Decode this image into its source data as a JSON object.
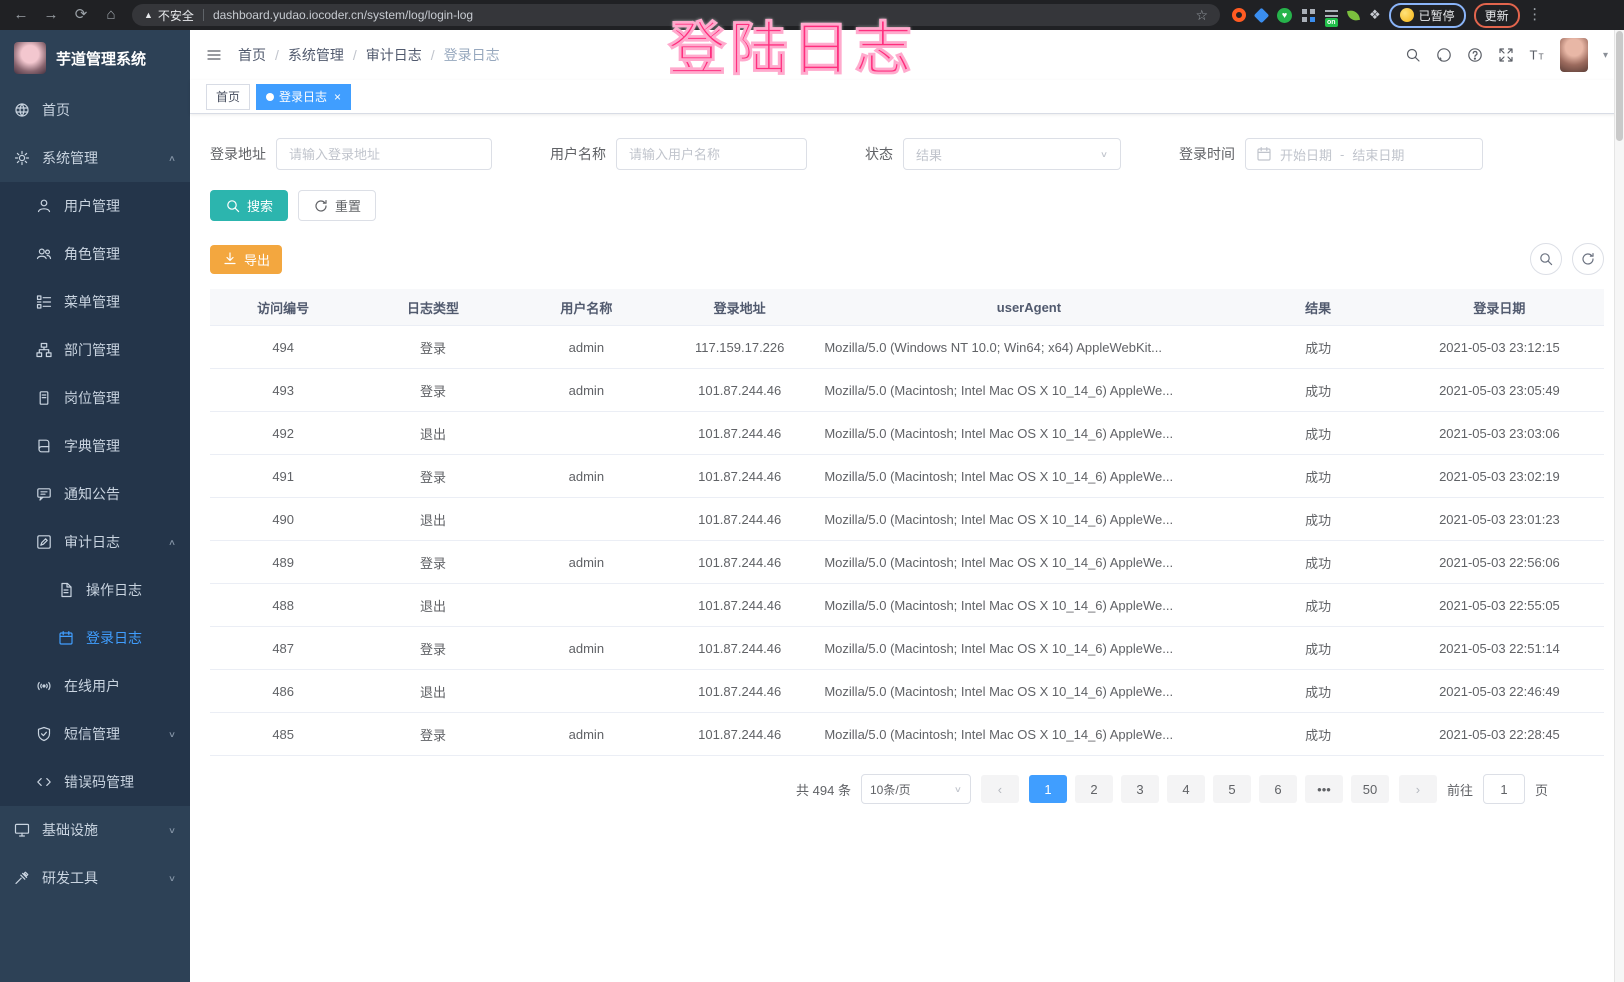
{
  "browser": {
    "security_label": "不安全",
    "url": "dashboard.yudao.iocoder.cn/system/log/login-log",
    "extension_badge": "on",
    "profile_chip": "已暂停",
    "update_button": "更新"
  },
  "annotation": {
    "text": "登陆日志",
    "color": "#ff2f7e"
  },
  "sidebar": {
    "app_title": "芋道管理系统",
    "menu": [
      {
        "name": "home",
        "icon": "dashboard-icon",
        "label": "首页",
        "depth": 0
      },
      {
        "name": "system",
        "icon": "gear-icon",
        "label": "系统管理",
        "depth": 0,
        "chevron": "up"
      },
      {
        "name": "user-mgmt",
        "icon": "user-icon",
        "label": "用户管理",
        "depth": 1
      },
      {
        "name": "role-mgmt",
        "icon": "users-icon",
        "label": "角色管理",
        "depth": 1
      },
      {
        "name": "menu-mgmt",
        "icon": "menu-tree-icon",
        "label": "菜单管理",
        "depth": 1
      },
      {
        "name": "dept-mgmt",
        "icon": "org-tree-icon",
        "label": "部门管理",
        "depth": 1
      },
      {
        "name": "post-mgmt",
        "icon": "badge-icon",
        "label": "岗位管理",
        "depth": 1
      },
      {
        "name": "dict-mgmt",
        "icon": "book-icon",
        "label": "字典管理",
        "depth": 1
      },
      {
        "name": "notice",
        "icon": "megaphone-icon",
        "label": "通知公告",
        "depth": 1
      },
      {
        "name": "audit-log",
        "icon": "edit-icon",
        "label": "审计日志",
        "depth": 1,
        "chevron": "up"
      },
      {
        "name": "operate-log",
        "icon": "document-icon",
        "label": "操作日志",
        "depth": 2
      },
      {
        "name": "login-log",
        "icon": "calendar-icon",
        "label": "登录日志",
        "depth": 2,
        "active": true
      },
      {
        "name": "online-user",
        "icon": "online-icon",
        "label": "在线用户",
        "depth": 1
      },
      {
        "name": "sms-mgmt",
        "icon": "shield-icon",
        "label": "短信管理",
        "depth": 1,
        "chevron": "down"
      },
      {
        "name": "errcode-mgmt",
        "icon": "code-icon",
        "label": "错误码管理",
        "depth": 1
      },
      {
        "name": "infra",
        "icon": "monitor-icon",
        "label": "基础设施",
        "depth": 0,
        "chevron": "down"
      },
      {
        "name": "devtool",
        "icon": "tool-icon",
        "label": "研发工具",
        "depth": 0,
        "chevron": "down"
      }
    ]
  },
  "header": {
    "breadcrumb": [
      "首页",
      "系统管理",
      "审计日志",
      "登录日志"
    ],
    "icons": [
      "search-icon",
      "github-icon",
      "help-icon",
      "fullscreen-icon",
      "font-size-icon"
    ]
  },
  "tabs": [
    {
      "label": "首页",
      "active": false
    },
    {
      "label": "登录日志",
      "active": true
    }
  ],
  "filters": {
    "address_label": "登录地址",
    "address_placeholder": "请输入登录地址",
    "username_label": "用户名称",
    "username_placeholder": "请输入用户名称",
    "status_label": "状态",
    "status_placeholder": "结果",
    "time_label": "登录时间",
    "start_placeholder": "开始日期",
    "separator": "-",
    "end_placeholder": "结束日期",
    "search_label": "搜索",
    "reset_label": "重置",
    "export_label": "导出"
  },
  "table": {
    "columns": [
      "访问编号",
      "日志类型",
      "用户名称",
      "登录地址",
      "userAgent",
      "结果",
      "登录日期"
    ],
    "rows": [
      {
        "id": "494",
        "type": "登录",
        "user": "admin",
        "ip": "117.159.17.226",
        "ua": "Mozilla/5.0 (Windows NT 10.0; Win64; x64) AppleWebKit...",
        "result": "成功",
        "date": "2021-05-03 23:12:15"
      },
      {
        "id": "493",
        "type": "登录",
        "user": "admin",
        "ip": "101.87.244.46",
        "ua": "Mozilla/5.0 (Macintosh; Intel Mac OS X 10_14_6) AppleWe...",
        "result": "成功",
        "date": "2021-05-03 23:05:49"
      },
      {
        "id": "492",
        "type": "退出",
        "user": "",
        "ip": "101.87.244.46",
        "ua": "Mozilla/5.0 (Macintosh; Intel Mac OS X 10_14_6) AppleWe...",
        "result": "成功",
        "date": "2021-05-03 23:03:06"
      },
      {
        "id": "491",
        "type": "登录",
        "user": "admin",
        "ip": "101.87.244.46",
        "ua": "Mozilla/5.0 (Macintosh; Intel Mac OS X 10_14_6) AppleWe...",
        "result": "成功",
        "date": "2021-05-03 23:02:19"
      },
      {
        "id": "490",
        "type": "退出",
        "user": "",
        "ip": "101.87.244.46",
        "ua": "Mozilla/5.0 (Macintosh; Intel Mac OS X 10_14_6) AppleWe...",
        "result": "成功",
        "date": "2021-05-03 23:01:23"
      },
      {
        "id": "489",
        "type": "登录",
        "user": "admin",
        "ip": "101.87.244.46",
        "ua": "Mozilla/5.0 (Macintosh; Intel Mac OS X 10_14_6) AppleWe...",
        "result": "成功",
        "date": "2021-05-03 22:56:06"
      },
      {
        "id": "488",
        "type": "退出",
        "user": "",
        "ip": "101.87.244.46",
        "ua": "Mozilla/5.0 (Macintosh; Intel Mac OS X 10_14_6) AppleWe...",
        "result": "成功",
        "date": "2021-05-03 22:55:05"
      },
      {
        "id": "487",
        "type": "登录",
        "user": "admin",
        "ip": "101.87.244.46",
        "ua": "Mozilla/5.0 (Macintosh; Intel Mac OS X 10_14_6) AppleWe...",
        "result": "成功",
        "date": "2021-05-03 22:51:14"
      },
      {
        "id": "486",
        "type": "退出",
        "user": "",
        "ip": "101.87.244.46",
        "ua": "Mozilla/5.0 (Macintosh; Intel Mac OS X 10_14_6) AppleWe...",
        "result": "成功",
        "date": "2021-05-03 22:46:49"
      },
      {
        "id": "485",
        "type": "登录",
        "user": "admin",
        "ip": "101.87.244.46",
        "ua": "Mozilla/5.0 (Macintosh; Intel Mac OS X 10_14_6) AppleWe...",
        "result": "成功",
        "date": "2021-05-03 22:28:45"
      }
    ]
  },
  "pagination": {
    "total_label": "共 494 条",
    "page_size_label": "10条/页",
    "pages": [
      {
        "label": "1",
        "active": true
      },
      {
        "label": "2"
      },
      {
        "label": "3"
      },
      {
        "label": "4"
      },
      {
        "label": "5"
      },
      {
        "label": "6"
      },
      {
        "label": "•••",
        "ellipsis": true
      },
      {
        "label": "50"
      }
    ],
    "goto_label": "前往",
    "goto_value": "1",
    "page_unit": "页"
  },
  "colors": {
    "accent": "#409eff",
    "search_button": "#2cb5ae",
    "export_button": "#f3a73f",
    "annotation": "#ff2f7e",
    "sidebar_bg": "#2d4156"
  }
}
